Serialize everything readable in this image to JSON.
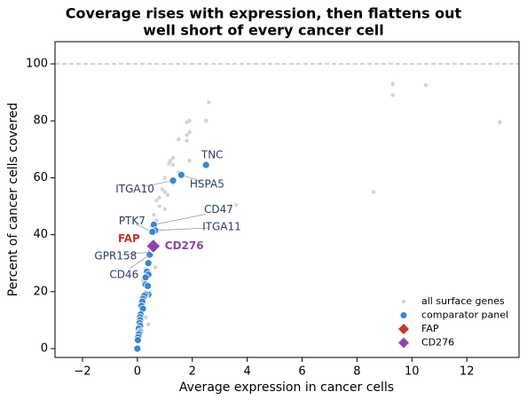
{
  "chart_data": {
    "type": "scatter",
    "title": [
      "Coverage rises with expression, then flattens out",
      "well short of every cancer cell"
    ],
    "x_label": "Average expression in cancer cells",
    "y_label": "Percent of cancer cells covered",
    "xlim": [
      -3,
      13.9
    ],
    "ylim": [
      -3.1,
      107.8
    ],
    "xticks": [
      {
        "value": -2,
        "label": "−2"
      },
      0,
      2,
      4,
      6,
      8,
      10,
      12
    ],
    "yticks": [
      0,
      20,
      40,
      60,
      80,
      100
    ],
    "hline": 100,
    "legend": "lower right",
    "series": [
      {
        "name": "all surface genes",
        "color": "#d3d3d3",
        "marker": "dot",
        "x": [
          2.6,
          9.3,
          9.3,
          10.5,
          13.2,
          8.6,
          3.6,
          1.9,
          1.8,
          2.5,
          1.9,
          1.8,
          1.8,
          1.5,
          1.2,
          1.3,
          1.15,
          1.3,
          1.9,
          1.5,
          1.0,
          1.3,
          0.9,
          1.0,
          0.8,
          1.1,
          0.7,
          0.8,
          1.0,
          0.6,
          0.7,
          0.5,
          0.6,
          0.4,
          0.3,
          0.2,
          0.3,
          0.1,
          0.2,
          0.1,
          0.05,
          0.02,
          0.4,
          0.65,
          0.3
        ],
        "values": [
          86.5,
          93,
          89,
          92.5,
          79.5,
          55,
          50.5,
          80,
          79.5,
          80,
          76,
          75,
          73,
          73.5,
          66,
          64.5,
          65,
          67,
          66,
          62,
          60,
          58,
          56,
          55,
          53,
          54,
          52,
          50,
          49,
          47,
          45,
          43,
          38,
          33,
          28,
          24,
          20,
          15,
          12,
          9,
          6,
          3,
          8.5,
          28.5,
          11
        ]
      },
      {
        "name": "comparator panel",
        "color": "#3a86d0",
        "marker": "dot-large",
        "x": [
          2.5,
          1.6,
          1.3,
          0.6,
          0.65,
          0.55,
          0.5,
          0.45,
          0.4,
          0.35,
          0.4,
          0.3,
          0.3,
          0.38,
          0.4,
          0.3,
          0.25,
          0.2,
          0.18,
          0.15,
          0.2,
          0.12,
          0.1,
          0.1,
          0.08,
          0.1,
          0.05,
          0.1,
          0.08,
          0.05,
          0.03,
          0.02,
          0
        ],
        "values": [
          64.5,
          61,
          59,
          43.5,
          41.5,
          41,
          34,
          33,
          30,
          27,
          26,
          25,
          22.5,
          22,
          19,
          19,
          18.5,
          17.5,
          16.5,
          15,
          14,
          12,
          11,
          10,
          9,
          8,
          7,
          6,
          5.5,
          5,
          4,
          3,
          0
        ],
        "labels": [
          "TNC",
          "HSPA5",
          "ITGA10",
          "CD47",
          "ITGA11",
          "PTK7",
          "GPR158",
          "CD46",
          null,
          null,
          null,
          null,
          null,
          null,
          null,
          null,
          null,
          null,
          null,
          null,
          null,
          null,
          null,
          null,
          null,
          null,
          null,
          null,
          null,
          null,
          null,
          null,
          null
        ]
      },
      {
        "name": "FAP",
        "color": "#c0392b",
        "marker": "diamond",
        "x": [
          0.55
        ],
        "values": [
          36
        ]
      },
      {
        "name": "CD276",
        "color": "#8e44ad",
        "marker": "diamond",
        "x": [
          0.58
        ],
        "values": [
          36
        ]
      }
    ]
  }
}
